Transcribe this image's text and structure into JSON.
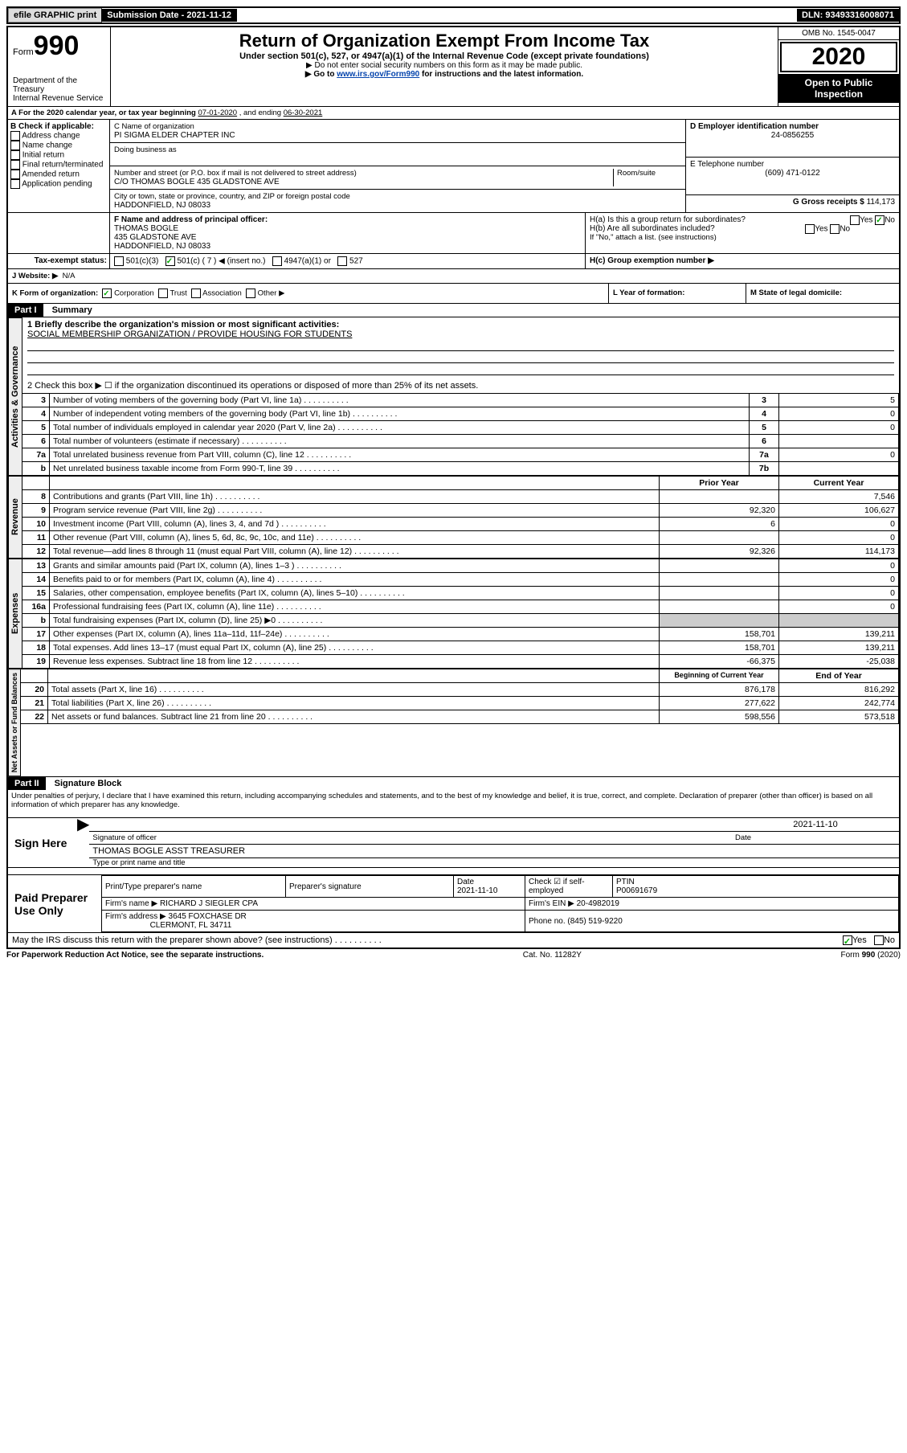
{
  "top": {
    "efile": "efile GRAPHIC print",
    "subdate_label": "Submission Date - ",
    "subdate": "2021-11-12",
    "dln_label": "DLN: ",
    "dln": "93493316008071"
  },
  "header": {
    "form": "Form",
    "num": "990",
    "dept": "Department of the Treasury\nInternal Revenue Service",
    "title": "Return of Organization Exempt From Income Tax",
    "sub1": "Under section 501(c), 527, or 4947(a)(1) of the Internal Revenue Code (except private foundations)",
    "sub2": "▶ Do not enter social security numbers on this form as it may be made public.",
    "sub3_pre": "▶ Go to ",
    "sub3_link": "www.irs.gov/Form990",
    "sub3_post": " for instructions and the latest information.",
    "omb": "OMB No. 1545-0047",
    "year": "2020",
    "open": "Open to Public Inspection"
  },
  "A": {
    "text": "A For the 2020 calendar year, or tax year beginning ",
    "begin": "07-01-2020",
    "mid": " , and ending ",
    "end": "06-30-2021"
  },
  "B": {
    "label": "B Check if applicable:",
    "opts": [
      "Address change",
      "Name change",
      "Initial return",
      "Final return/terminated",
      "Amended return",
      "Application pending"
    ]
  },
  "C": {
    "label": "C Name of organization",
    "name": "PI SIGMA ELDER CHAPTER INC",
    "dba": "Doing business as",
    "street_label": "Number and street (or P.O. box if mail is not delivered to street address)",
    "room": "Room/suite",
    "street": "C/O THOMAS BOGLE 435 GLADSTONE AVE",
    "city_label": "City or town, state or province, country, and ZIP or foreign postal code",
    "city": "HADDONFIELD, NJ  08033"
  },
  "D": {
    "label": "D Employer identification number",
    "val": "24-0856255"
  },
  "E": {
    "label": "E Telephone number",
    "val": "(609) 471-0122"
  },
  "G": {
    "label": "G Gross receipts $ ",
    "val": "114,173"
  },
  "F": {
    "label": "F Name and address of principal officer:",
    "name": "THOMAS BOGLE",
    "addr1": "435 GLADSTONE AVE",
    "addr2": "HADDONFIELD, NJ  08033"
  },
  "H": {
    "a": "H(a)  Is this a group return for subordinates?",
    "a_no": "No",
    "b": "H(b)  Are all subordinates included?",
    "b_note": "If \"No,\" attach a list. (see instructions)",
    "c": "H(c)  Group exemption number ▶"
  },
  "I": {
    "label": "Tax-exempt status:",
    "opts": [
      "501(c)(3)",
      "501(c) ( 7 ) ◀ (insert no.)",
      "4947(a)(1) or",
      "527"
    ]
  },
  "J": {
    "label": "J Website: ▶",
    "val": "N/A"
  },
  "K": {
    "label": "K Form of organization:",
    "opts": [
      "Corporation",
      "Trust",
      "Association",
      "Other ▶"
    ]
  },
  "L": {
    "label": "L Year of formation:"
  },
  "M": {
    "label": "M State of legal domicile:"
  },
  "part1": {
    "title": "Part I",
    "subtitle": "Summary",
    "q1": "1  Briefly describe the organization's mission or most significant activities:",
    "q1val": "SOCIAL MEMBERSHIP ORGANIZATION / PROVIDE HOUSING FOR STUDENTS",
    "q2": "2   Check this box ▶ ☐  if the organization discontinued its operations or disposed of more than 25% of its net assets.",
    "rows_gov": [
      {
        "n": "3",
        "t": "Number of voting members of the governing body (Part VI, line 1a)",
        "c": "3",
        "v": "5"
      },
      {
        "n": "4",
        "t": "Number of independent voting members of the governing body (Part VI, line 1b)",
        "c": "4",
        "v": "0"
      },
      {
        "n": "5",
        "t": "Total number of individuals employed in calendar year 2020 (Part V, line 2a)",
        "c": "5",
        "v": "0"
      },
      {
        "n": "6",
        "t": "Total number of volunteers (estimate if necessary)",
        "c": "6",
        "v": ""
      },
      {
        "n": "7a",
        "t": "Total unrelated business revenue from Part VIII, column (C), line 12",
        "c": "7a",
        "v": "0"
      },
      {
        "n": "b",
        "t": "Net unrelated business taxable income from Form 990-T, line 39",
        "c": "7b",
        "v": ""
      }
    ],
    "col_prior": "Prior Year",
    "col_current": "Current Year",
    "rows_rev": [
      {
        "n": "8",
        "t": "Contributions and grants (Part VIII, line 1h)",
        "p": "",
        "c": "7,546"
      },
      {
        "n": "9",
        "t": "Program service revenue (Part VIII, line 2g)",
        "p": "92,320",
        "c": "106,627"
      },
      {
        "n": "10",
        "t": "Investment income (Part VIII, column (A), lines 3, 4, and 7d )",
        "p": "6",
        "c": "0"
      },
      {
        "n": "11",
        "t": "Other revenue (Part VIII, column (A), lines 5, 6d, 8c, 9c, 10c, and 11e)",
        "p": "",
        "c": "0"
      },
      {
        "n": "12",
        "t": "Total revenue—add lines 8 through 11 (must equal Part VIII, column (A), line 12)",
        "p": "92,326",
        "c": "114,173"
      }
    ],
    "rows_exp": [
      {
        "n": "13",
        "t": "Grants and similar amounts paid (Part IX, column (A), lines 1–3 )",
        "p": "",
        "c": "0"
      },
      {
        "n": "14",
        "t": "Benefits paid to or for members (Part IX, column (A), line 4)",
        "p": "",
        "c": "0"
      },
      {
        "n": "15",
        "t": "Salaries, other compensation, employee benefits (Part IX, column (A), lines 5–10)",
        "p": "",
        "c": "0"
      },
      {
        "n": "16a",
        "t": "Professional fundraising fees (Part IX, column (A), line 11e)",
        "p": "",
        "c": "0"
      },
      {
        "n": "b",
        "t": "Total fundraising expenses (Part IX, column (D), line 25) ▶0",
        "p": "shaded",
        "c": "shaded"
      },
      {
        "n": "17",
        "t": "Other expenses (Part IX, column (A), lines 11a–11d, 11f–24e)",
        "p": "158,701",
        "c": "139,211"
      },
      {
        "n": "18",
        "t": "Total expenses. Add lines 13–17 (must equal Part IX, column (A), line 25)",
        "p": "158,701",
        "c": "139,211"
      },
      {
        "n": "19",
        "t": "Revenue less expenses. Subtract line 18 from line 12",
        "p": "-66,375",
        "c": "-25,038"
      }
    ],
    "col_begin": "Beginning of Current Year",
    "col_end": "End of Year",
    "rows_net": [
      {
        "n": "20",
        "t": "Total assets (Part X, line 16)",
        "p": "876,178",
        "c": "816,292"
      },
      {
        "n": "21",
        "t": "Total liabilities (Part X, line 26)",
        "p": "277,622",
        "c": "242,774"
      },
      {
        "n": "22",
        "t": "Net assets or fund balances. Subtract line 21 from line 20",
        "p": "598,556",
        "c": "573,518"
      }
    ],
    "vert1": "Activities & Governance",
    "vert2": "Revenue",
    "vert3": "Expenses",
    "vert4": "Net Assets or Fund Balances"
  },
  "part2": {
    "title": "Part II",
    "subtitle": "Signature Block",
    "decl": "Under penalties of perjury, I declare that I have examined this return, including accompanying schedules and statements, and to the best of my knowledge and belief, it is true, correct, and complete. Declaration of preparer (other than officer) is based on all information of which preparer has any knowledge.",
    "sign_here": "Sign Here",
    "sig_officer": "Signature of officer",
    "sig_date": "2021-11-10",
    "sig_date_label": "Date",
    "officer": "THOMAS BOGLE  ASST TREASURER",
    "typename": "Type or print name and title",
    "paid": "Paid Preparer Use Only",
    "prep_name_label": "Print/Type preparer's name",
    "prep_sig_label": "Preparer's signature",
    "prep_date_label": "Date",
    "prep_date": "2021-11-10",
    "check_if": "Check ☑ if self-employed",
    "ptin_label": "PTIN",
    "ptin": "P00691679",
    "firm_name_label": "Firm's name    ▶",
    "firm_name": "RICHARD J SIEGLER CPA",
    "firm_ein_label": "Firm's EIN ▶",
    "firm_ein": "20-4982019",
    "firm_addr_label": "Firm's address ▶",
    "firm_addr1": "3645 FOXCHASE DR",
    "firm_addr2": "CLERMONT, FL  34711",
    "phone_label": "Phone no. ",
    "phone": "(845) 519-9220",
    "discuss": "May the IRS discuss this return with the preparer shown above? (see instructions)",
    "yes": "Yes",
    "no": "No"
  },
  "footer": {
    "left": "For Paperwork Reduction Act Notice, see the separate instructions.",
    "mid": "Cat. No. 11282Y",
    "right": "Form 990 (2020)"
  }
}
